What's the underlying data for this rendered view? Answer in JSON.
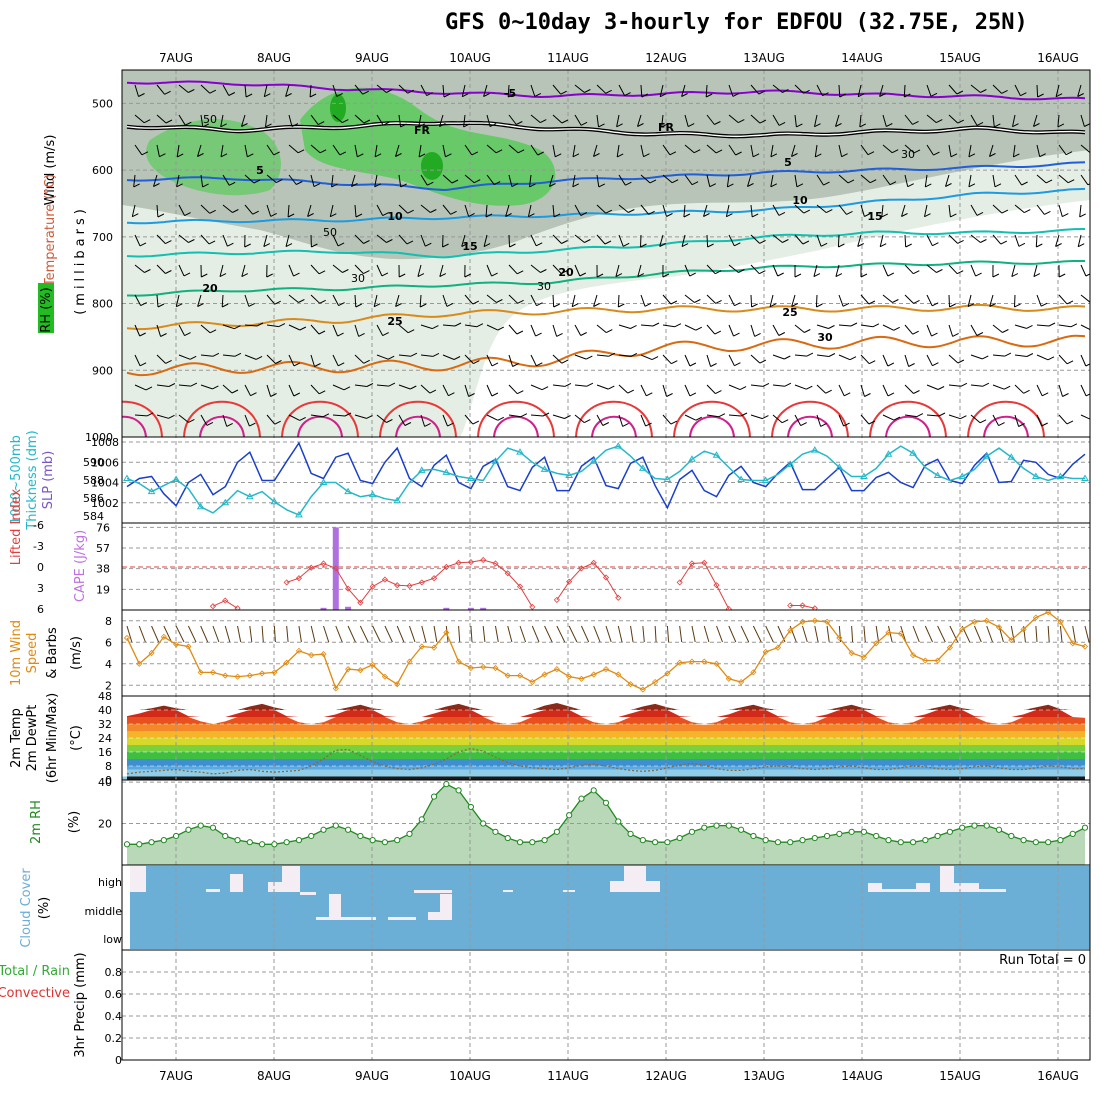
{
  "title": "GFS 0~10day 3-hourly for EDFOU (32.75E, 25N)",
  "colors": {
    "frame": "#000000",
    "grid": "#999999",
    "rh_green": "#44cc44",
    "rh_grey": "#b7c4b7",
    "rh_light": "#e4eee4",
    "temp_purple": "#8800cc",
    "temp_blue": "#1f5fd8",
    "temp_sky": "#1d9be0",
    "temp_teal": "#12bfb0",
    "temp_green": "#10b080",
    "temp_orange": "#d88a1a",
    "temp_dark_orange": "#d96a10",
    "temp_red": "#e83838",
    "temp_magenta": "#d0208a",
    "slp": "#1a3fcc",
    "thickness": "#25b8c8",
    "cape": "#b070e0",
    "li": "#e04040",
    "wind": "#e08a10",
    "rh2m": "#228822",
    "cloud": "#6baed6",
    "precip_total": "#33aa33",
    "precip_conv": "#e03030"
  },
  "chart_data": [
    {
      "type": "contour",
      "panel": "upper-air",
      "x": [
        "7AUG",
        "8AUG",
        "9AUG",
        "10AUG",
        "11AUG",
        "12AUG",
        "13AUG",
        "14AUG",
        "15AUG",
        "16AUG"
      ],
      "ylabel_parts": [
        "Wind (m/s)",
        "Temperature (°C)",
        "RH (%)"
      ],
      "yunit_label": "(millibars)",
      "ylim": [
        1000,
        450
      ],
      "yticks": [
        500,
        600,
        700,
        800,
        900,
        1000
      ],
      "inverted": true,
      "contour_labels": [
        "-5",
        "FR",
        "FR",
        "5",
        "5",
        "10",
        "10",
        "15",
        "15",
        "20",
        "20",
        "25",
        "25",
        "30"
      ],
      "rh_labels": [
        "50",
        "50",
        "30",
        "30",
        "30"
      ],
      "isotherms": [
        {
          "label": "-5",
          "levels": [
            468,
            470,
            478,
            484,
            489,
            486,
            482,
            487,
            490,
            494
          ]
        },
        {
          "label": "FR",
          "levels": [
            534,
            540,
            535,
            528,
            538,
            546,
            548,
            543,
            538,
            545
          ]
        },
        {
          "label": "5",
          "levels": [
            614,
            612,
            620,
            628,
            616,
            610,
            604,
            600,
            596,
            590
          ]
        },
        {
          "label": "10",
          "levels": [
            678,
            676,
            675,
            671,
            668,
            664,
            660,
            648,
            636,
            630
          ]
        },
        {
          "label": "15",
          "levels": [
            728,
            724,
            722,
            729,
            720,
            712,
            700,
            694,
            694,
            690
          ]
        },
        {
          "label": "20",
          "levels": [
            787,
            780,
            778,
            772,
            768,
            755,
            746,
            742,
            739,
            738
          ]
        },
        {
          "label": "25",
          "levels": [
            835,
            830,
            825,
            815,
            812,
            808,
            808,
            808,
            806,
            808
          ]
        },
        {
          "label": "30",
          "levels": [
            900,
            896,
            895,
            892,
            885,
            866,
            862,
            858,
            857,
            856
          ]
        },
        {
          "label": "35",
          "levels": [
            950,
            950,
            950,
            950,
            950,
            950,
            950,
            950,
            950,
            950
          ]
        }
      ]
    },
    {
      "type": "line",
      "panel": "slp-thickness",
      "ylabel_left": "Thickness (dm)",
      "ylabel_left2": "1000~500mb",
      "ylabel_right": "SLP (mb)",
      "yticks_left": [
        "584",
        "586",
        "588",
        "590"
      ],
      "yticks_right": [
        "1002",
        "1004",
        "1006",
        "1008"
      ],
      "ylim_right": [
        1000,
        1008.5
      ],
      "series": [
        {
          "name": "SLP (mb)",
          "values": [
            1003.6,
            1004.4,
            1004.6,
            1002.9,
            1001.7,
            1004.0,
            1004.8,
            1002.8,
            1003.6,
            1006.0,
            1007.0,
            1004.2,
            1004.2,
            1006.1,
            1007.9,
            1004.9,
            1004.4,
            1006.5,
            1006.9,
            1004.2,
            1003.9,
            1006.0,
            1007.4,
            1004.4,
            1003.6,
            1005.7,
            1006.7,
            1004.0,
            1003.4,
            1005.6,
            1006.3,
            1003.6,
            1003.2,
            1005.5,
            1006.5,
            1003.2,
            1003.2,
            1005.6,
            1006.5,
            1003.7,
            1003.4,
            1005.9,
            1006.5,
            1003.7,
            1001.5,
            1004.3,
            1005.2,
            1003.2,
            1002.6,
            1004.7,
            1005.6,
            1004.0,
            1003.6,
            1004.9,
            1006.0,
            1003.3,
            1003.3,
            1004.4,
            1005.5,
            1003.2,
            1003.2,
            1004.5,
            1005.0,
            1004.0,
            1003.5,
            1005.7,
            1006.3,
            1004.2,
            1003.9,
            1005.7,
            1006.9,
            1004.0,
            1004.1,
            1006.2,
            1006.0,
            1004.8,
            1004.4,
            1005.8,
            1006.8
          ]
        },
        {
          "name": "Thickness (dm)",
          "values": [
            1004.4,
            1003.9,
            1003.1,
            1003.7,
            1004.3,
            1003.4,
            1001.6,
            1001.0,
            1002.0,
            1003.2,
            1002.6,
            1003.1,
            1002.1,
            1001.3,
            1000.8,
            1002.6,
            1004.0,
            1004.0,
            1003.1,
            1002.6,
            1002.8,
            1002.4,
            1002.2,
            1004.0,
            1005.2,
            1005.3,
            1005.0,
            1004.6,
            1004.4,
            1004.2,
            1006.1,
            1007.4,
            1007.0,
            1006.0,
            1005.3,
            1004.9,
            1004.7,
            1005.1,
            1006.1,
            1007.2,
            1007.6,
            1006.6,
            1005.4,
            1004.4,
            1004.3,
            1005.1,
            1006.3,
            1007.1,
            1006.7,
            1005.5,
            1004.3,
            1004.2,
            1004.2,
            1004.8,
            1005.8,
            1006.8,
            1007.2,
            1006.6,
            1005.5,
            1004.6,
            1004.6,
            1005.4,
            1006.8,
            1007.6,
            1006.9,
            1005.5,
            1004.7,
            1004.2,
            1004.6,
            1005.3,
            1006.6,
            1007.4,
            1006.5,
            1005.4,
            1004.6,
            1004.2,
            1004.6,
            1004.4,
            1004.4
          ]
        }
      ]
    },
    {
      "type": "bar+line",
      "panel": "cape-li",
      "ylabel_left": "Lifted Index",
      "ylabel_right": "CAPE (J/kg)",
      "yticks_left": [
        "6",
        "3",
        "0",
        "-3",
        "-6"
      ],
      "yticks_right": [
        "19",
        "38",
        "57",
        "76"
      ],
      "cape_bars": [
        {
          "i": 16,
          "v": 2
        },
        {
          "i": 17,
          "v": 76
        },
        {
          "i": 18,
          "v": 3
        },
        {
          "i": 26,
          "v": 2
        },
        {
          "i": 28,
          "v": 2
        },
        {
          "i": 29,
          "v": 2
        }
      ],
      "lifted_index_segments": [
        {
          "start": 7,
          "values": [
            5.6,
            4.8,
            5.9
          ]
        },
        {
          "start": 13,
          "values": [
            2.2,
            1.6,
            0.1,
            -0.5,
            0.2,
            3.1,
            5.1,
            2.8,
            1.8,
            2.6,
            2.7,
            2.2,
            1.6,
            0.0,
            -0.6,
            -0.7,
            -1.0,
            -0.5,
            0.9,
            2.8,
            5.7
          ]
        },
        {
          "start": 35,
          "values": [
            4.7,
            2.1,
            0.2,
            -0.6,
            1.5,
            4.4
          ]
        },
        {
          "start": 45,
          "values": [
            2.2,
            -0.5,
            -0.6,
            2.6,
            6.0
          ]
        },
        {
          "start": 54,
          "values": [
            5.5,
            5.5,
            5.9
          ]
        }
      ]
    },
    {
      "type": "line",
      "panel": "10m-wind",
      "ylabel": "10m Wind Speed & Barbs (m/s)",
      "yticks": [
        "2",
        "4",
        "6",
        "8"
      ],
      "ylim": [
        1,
        9
      ],
      "series": [
        {
          "name": "10m Wind Speed",
          "values": [
            6.4,
            4.0,
            5.0,
            6.5,
            5.8,
            5.6,
            3.2,
            3.2,
            2.9,
            2.8,
            2.9,
            3.1,
            3.2,
            4.1,
            5.2,
            4.8,
            4.9,
            1.7,
            3.5,
            3.4,
            3.9,
            2.8,
            2.1,
            4.2,
            5.6,
            5.5,
            6.9,
            4.2,
            3.6,
            3.7,
            3.6,
            2.9,
            2.9,
            2.3,
            3.0,
            3.5,
            2.8,
            2.6,
            3.0,
            3.5,
            3.0,
            2.1,
            1.6,
            2.3,
            3.1,
            4.1,
            4.2,
            4.2,
            4.0,
            2.6,
            2.3,
            3.2,
            5.1,
            5.5,
            7.1,
            7.9,
            8.0,
            7.9,
            6.4,
            5.0,
            4.6,
            5.9,
            6.9,
            6.8,
            4.8,
            4.3,
            4.3,
            5.5,
            7.2,
            7.9,
            8.0,
            7.4,
            6.2,
            7.2,
            8.3,
            8.8,
            7.9,
            5.9,
            5.6
          ]
        }
      ]
    },
    {
      "type": "area+line",
      "panel": "2m-temp",
      "ylabel": "2m Temp 2m DewPt (6hr Min/Max) (°C)",
      "yticks": [
        "0",
        "8",
        "16",
        "24",
        "32",
        "40",
        "48"
      ],
      "ylim": [
        0,
        48
      ],
      "series": [
        {
          "name": "2m Temp",
          "values": [
            36.5,
            38.0,
            41.0,
            42.5,
            41.0,
            36.5,
            33.5,
            32.0,
            33.5,
            38.0,
            42.0,
            43.5,
            41.5,
            36.5,
            33.0,
            31.5,
            33.0,
            37.5,
            41.5,
            43.0,
            41.0,
            36.5,
            33.0,
            31.5,
            33.5,
            38.0,
            42.0,
            43.5,
            41.5,
            36.5,
            33.0,
            31.5,
            33.0,
            38.0,
            42.5,
            44.0,
            42.0,
            36.5,
            33.0,
            31.5,
            33.0,
            38.0,
            42.0,
            43.5,
            41.5,
            36.5,
            33.0,
            31.5,
            33.0,
            37.5,
            41.5,
            43.0,
            41.0,
            36.5,
            33.0,
            31.5,
            33.0,
            37.5,
            41.5,
            43.0,
            41.0,
            36.5,
            33.0,
            31.5,
            33.0,
            37.5,
            41.5,
            43.0,
            41.0,
            36.5,
            33.0,
            31.5,
            33.0,
            37.5,
            41.5,
            43.0,
            40.5,
            36.0,
            35.5
          ]
        },
        {
          "name": "2m DewPt",
          "values": [
            3.5,
            4.5,
            5.0,
            5.5,
            6.0,
            5.0,
            4.5,
            3.5,
            4.0,
            5.5,
            6.0,
            5.0,
            4.5,
            5.0,
            5.5,
            8.0,
            12.0,
            17.0,
            17.5,
            14.0,
            10.5,
            8.0,
            6.5,
            6.0,
            7.0,
            9.0,
            12.0,
            16.0,
            18.0,
            16.5,
            13.0,
            10.0,
            8.0,
            7.0,
            6.5,
            6.0,
            7.0,
            8.5,
            9.0,
            8.0,
            6.5,
            5.5,
            5.0,
            5.5,
            7.0,
            8.5,
            9.5,
            8.5,
            6.5,
            5.5,
            5.5,
            6.5,
            7.5,
            8.0,
            7.5,
            6.5,
            6.0,
            6.5,
            7.5,
            8.0,
            7.0,
            6.0,
            6.0,
            7.0,
            8.0,
            7.5,
            6.5,
            6.0,
            6.5,
            7.5,
            8.0,
            7.0,
            6.0,
            6.0,
            7.0,
            8.0,
            7.5,
            6.5,
            6.5
          ]
        }
      ]
    },
    {
      "type": "area+line",
      "panel": "2m-rh",
      "ylabel": "2m RH (%)",
      "yticks": [
        "20",
        "40"
      ],
      "ylim": [
        0,
        41
      ],
      "series": [
        {
          "name": "2m RH",
          "values": [
            10,
            10,
            11,
            12,
            14,
            17,
            19,
            18,
            14,
            12,
            11,
            10,
            10,
            11,
            12,
            14,
            17,
            19,
            17,
            14,
            12,
            11,
            12,
            15,
            22,
            33,
            39,
            36,
            28,
            20,
            16,
            13,
            11,
            11,
            12,
            16,
            24,
            32,
            36,
            30,
            21,
            15,
            12,
            11,
            11,
            13,
            16,
            18,
            19,
            19,
            17,
            14,
            12,
            11,
            11,
            12,
            13,
            14,
            15,
            16,
            16,
            14,
            12,
            11,
            11,
            12,
            14,
            16,
            18,
            19,
            19,
            17,
            14,
            12,
            11,
            11,
            12,
            15,
            18
          ]
        }
      ]
    },
    {
      "type": "bar",
      "panel": "cloud-cover",
      "ylabel": "Cloud Cover (%)",
      "yticks": [
        "high",
        "middle",
        "low"
      ]
    },
    {
      "type": "bar",
      "panel": "precip",
      "ylabel": "3hr Precip (mm)",
      "legend_total": "Total / Rain",
      "legend_conv": "Convective",
      "run_total": "Run Total = 0",
      "yticks": [
        "0",
        "0.2",
        "0.4",
        "0.6",
        "0.8"
      ],
      "ylim": [
        0,
        1.0
      ],
      "values": []
    }
  ]
}
